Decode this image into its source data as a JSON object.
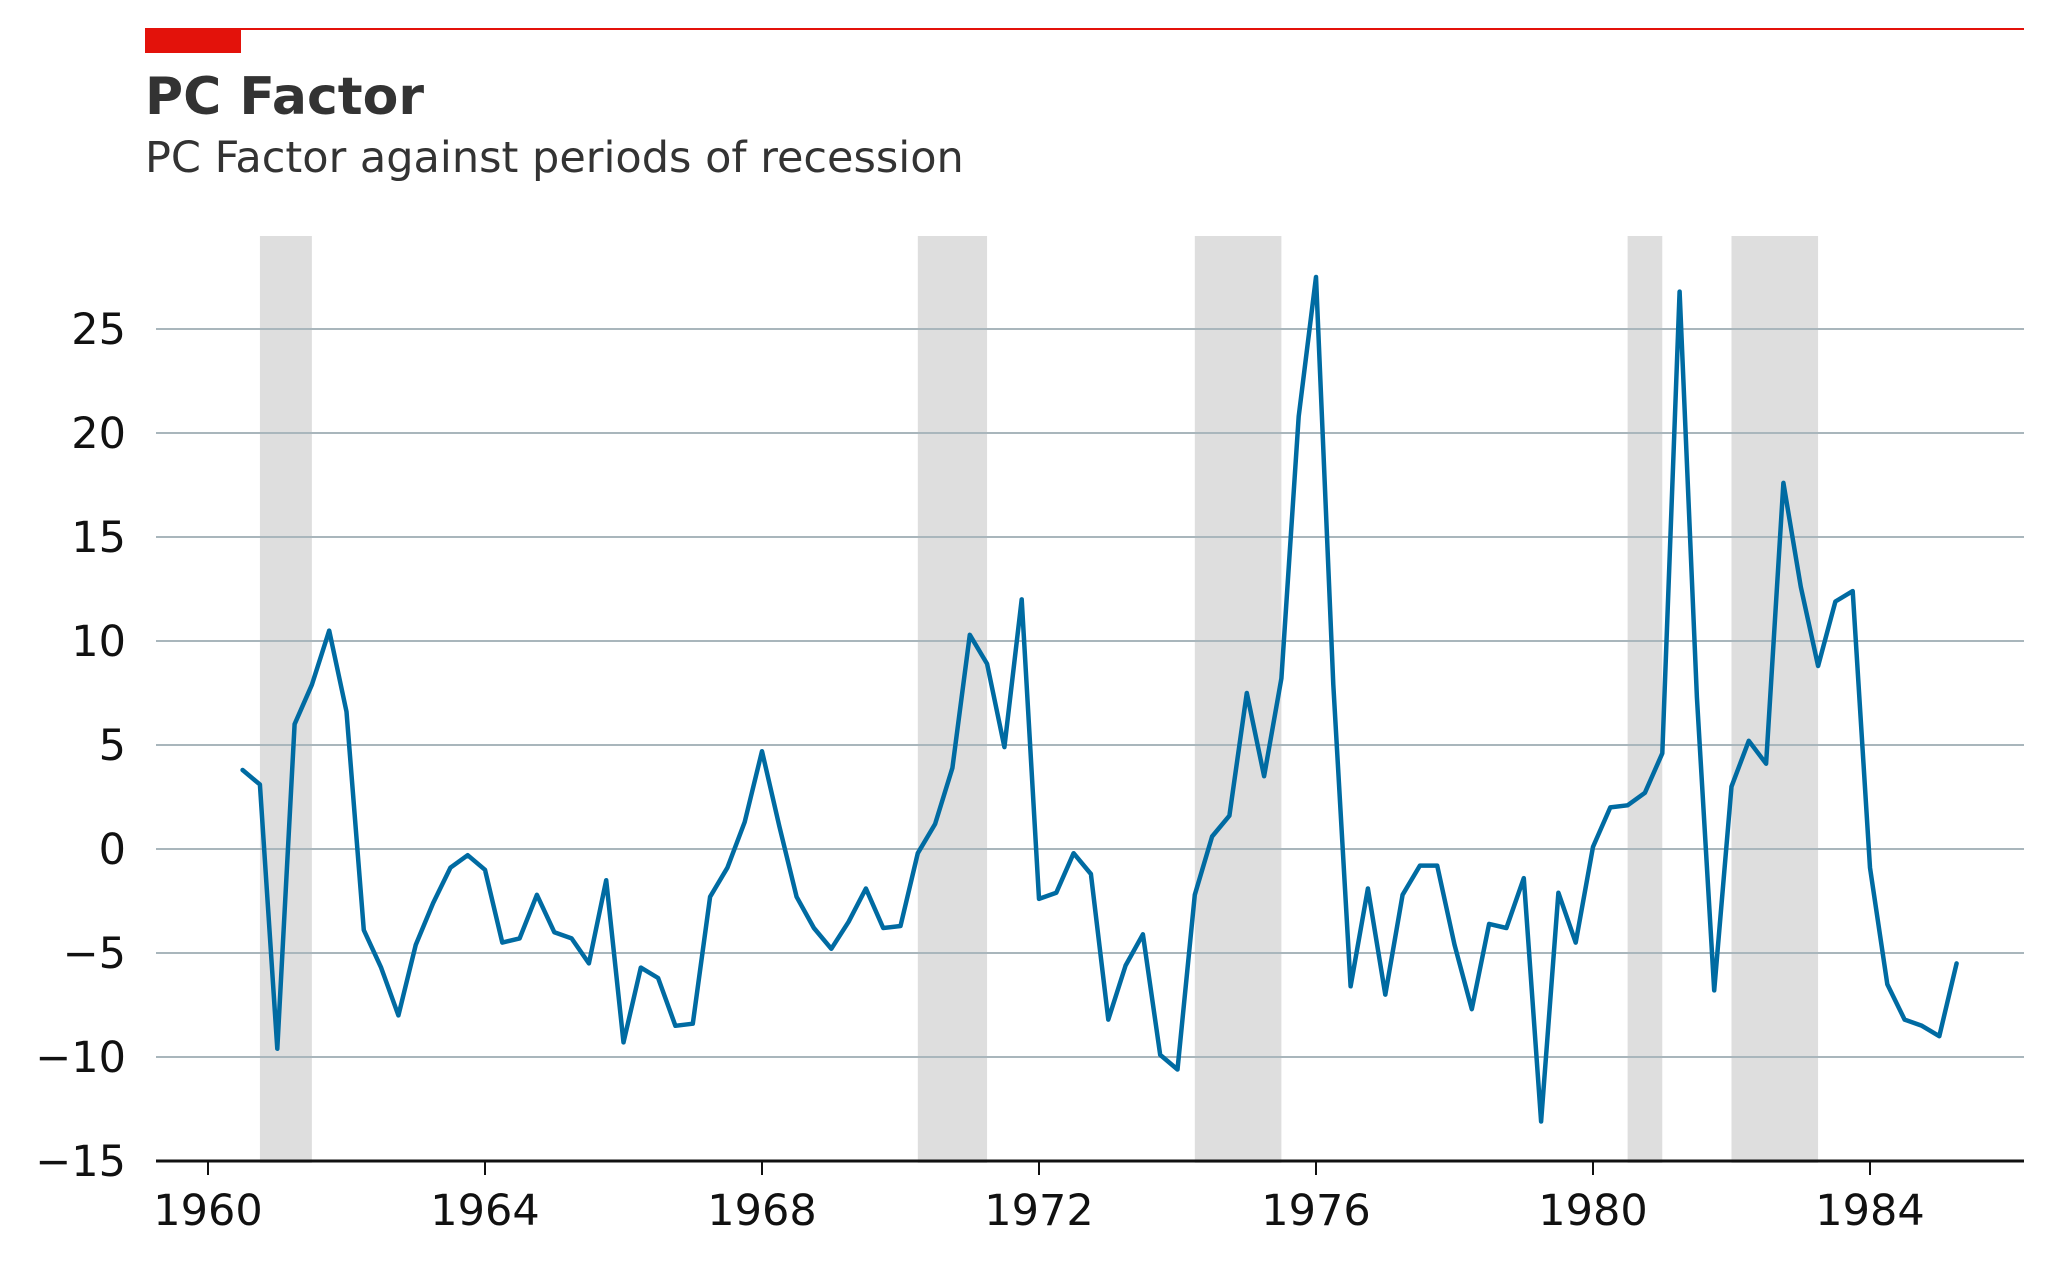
{
  "chart_data": {
    "type": "line",
    "title": "PC Factor",
    "subtitle": "PC Factor against periods of recession",
    "xlabel": "",
    "ylabel": "",
    "xlim": [
      1959.5,
      1986.4
    ],
    "ylim": [
      -15,
      29.5
    ],
    "x_ticks": [
      1960,
      1964,
      1968,
      1972,
      1976,
      1980,
      1984
    ],
    "x_tick_labels": [
      "1960",
      "1964",
      "1968",
      "1972",
      "1976",
      "1980",
      "1984"
    ],
    "y_ticks": [
      -15,
      -10,
      -5,
      0,
      5,
      10,
      15,
      20,
      25
    ],
    "y_tick_labels": [
      "−15",
      "−10",
      "−5",
      "0",
      "5",
      "10",
      "15",
      "20",
      "25"
    ],
    "grid": "horizontal",
    "recessions": [
      [
        1960.75,
        1961.5
      ],
      [
        1970.25,
        1971.25
      ],
      [
        1974.25,
        1975.5
      ],
      [
        1980.5,
        1981.0
      ],
      [
        1982.0,
        1983.25
      ]
    ],
    "series": [
      {
        "color": "#006ba2",
        "x": [
          1960.5,
          1960.75,
          1961.0,
          1961.25,
          1961.5,
          1961.75,
          1962.0,
          1962.25,
          1962.5,
          1962.75,
          1963.0,
          1963.25,
          1963.5,
          1963.75,
          1964.0,
          1964.25,
          1964.5,
          1964.75,
          1965.0,
          1965.25,
          1965.5,
          1965.75,
          1966.0,
          1966.25,
          1966.5,
          1966.75,
          1967.0,
          1967.25,
          1967.5,
          1967.75,
          1968.0,
          1968.25,
          1968.5,
          1968.75,
          1969.0,
          1969.25,
          1969.5,
          1969.75,
          1970.0,
          1970.25,
          1970.5,
          1970.75,
          1971.0,
          1971.25,
          1971.5,
          1971.75,
          1972.0,
          1972.25,
          1972.5,
          1972.75,
          1973.0,
          1973.25,
          1973.5,
          1973.75,
          1974.0,
          1974.25,
          1974.5,
          1974.75,
          1975.0,
          1975.25,
          1975.5,
          1975.75,
          1976.0,
          1976.25,
          1976.5,
          1976.75,
          1977.0,
          1977.25,
          1977.5,
          1977.75,
          1978.0,
          1978.25,
          1978.5,
          1978.75,
          1979.0,
          1979.25,
          1979.5,
          1979.75,
          1980.0,
          1980.25,
          1980.5,
          1980.75,
          1981.0,
          1981.25,
          1981.5,
          1981.75,
          1982.0,
          1982.25,
          1982.5,
          1982.75,
          1983.0,
          1983.25,
          1983.5,
          1983.75,
          1984.0,
          1984.25,
          1984.5,
          1984.75,
          1985.0,
          1985.25
        ],
        "values": [
          3.8,
          3.1,
          -9.6,
          6.0,
          7.9,
          10.5,
          6.6,
          -3.9,
          -5.7,
          -8.0,
          -4.6,
          -2.6,
          -0.9,
          -0.3,
          -1.0,
          -4.5,
          -4.3,
          -2.2,
          -4.0,
          -4.3,
          -5.5,
          -1.5,
          -9.3,
          -5.7,
          -6.2,
          -8.5,
          -8.4,
          -2.3,
          -0.9,
          1.3,
          4.7,
          1.1,
          -2.3,
          -3.8,
          -4.8,
          -3.5,
          -1.9,
          -3.8,
          -3.7,
          -0.2,
          1.2,
          3.9,
          10.3,
          8.9,
          4.9,
          12.0,
          -2.4,
          -2.1,
          -0.2,
          -1.2,
          -8.2,
          -5.6,
          -4.1,
          -9.9,
          -10.6,
          -2.2,
          0.6,
          1.6,
          7.5,
          3.5,
          8.2,
          20.8,
          27.5,
          7.9,
          -6.6,
          -1.9,
          -7.0,
          -2.2,
          -0.8,
          -0.8,
          -4.6,
          -7.7,
          -3.6,
          -3.8,
          -1.4,
          -13.1,
          -2.1,
          -4.5,
          0.1,
          2.0,
          2.1,
          2.7,
          4.6,
          26.8,
          7.3,
          -6.8,
          3.0,
          5.2,
          4.1,
          17.6,
          12.6,
          8.8,
          11.9,
          12.4,
          -0.9,
          -6.5,
          -8.2,
          -8.5,
          -9.0,
          -5.5
        ]
      }
    ]
  },
  "colors": {
    "accent": "#e3120b",
    "line": "#006ba2",
    "recession": "#dedede",
    "grid": "#a9b6bc",
    "axis": "#111111",
    "text": "#333333"
  }
}
